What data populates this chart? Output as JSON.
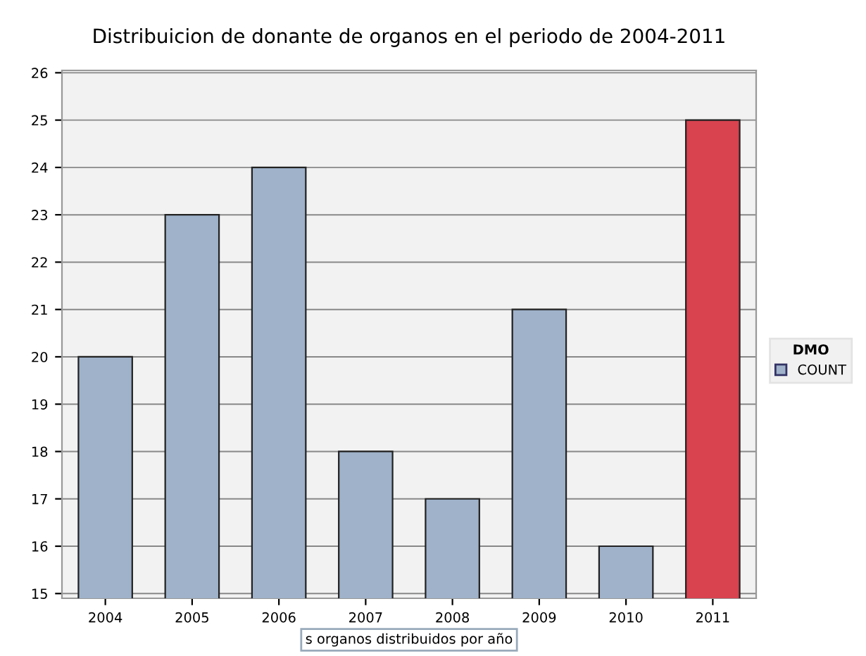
{
  "chart_data": {
    "type": "bar",
    "title": "Distribuicion de donante de organos en el periodo de 2004-2011",
    "xlabel": "s organos distribuidos por año",
    "legend_title": "DMO",
    "categories": [
      "2004",
      "2005",
      "2006",
      "2007",
      "2008",
      "2009",
      "2010",
      "2011"
    ],
    "series": [
      {
        "name": "COUNT",
        "color": "#9fb2ca",
        "colors": [
          "#9fb2ca",
          "#9fb2ca",
          "#9fb2ca",
          "#9fb2ca",
          "#9fb2ca",
          "#9fb2ca",
          "#9fb2ca",
          "#d8434f"
        ],
        "values": [
          20,
          23,
          24,
          18,
          17,
          21,
          16,
          25
        ]
      }
    ],
    "ylim": [
      14.9,
      26.05
    ],
    "yticks": [
      15,
      16,
      17,
      18,
      19,
      20,
      21,
      22,
      23,
      24,
      25,
      26
    ],
    "grid": "y",
    "legend": "right"
  }
}
